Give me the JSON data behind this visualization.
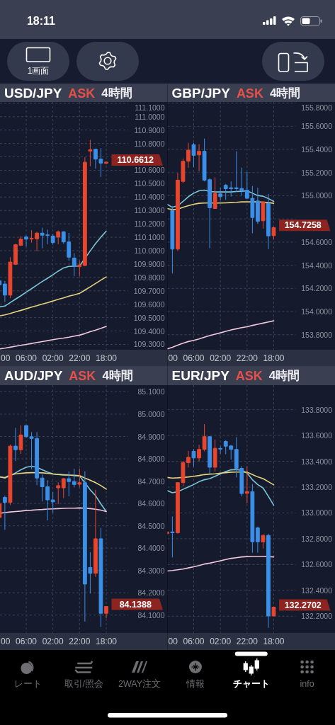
{
  "chart_data": [
    {
      "type": "candlestick",
      "title": "USD/JPY",
      "subtitle": "ASK",
      "annotations": [
        "4時間",
        "00",
        {
          "text": "110.6612",
          "x": "18:00",
          "y": 110.6612
        }
      ],
      "categories": [
        null,
        null,
        null,
        null,
        null,
        "06:00",
        null,
        null,
        null,
        null,
        "02:00",
        null,
        null,
        null,
        null,
        "22:00",
        null,
        null,
        null,
        null,
        "18:00"
      ],
      "ohlc": [
        [
          109.774,
          109.787,
          109.73,
          109.744
        ],
        [
          109.751,
          109.774,
          109.616,
          109.668
        ],
        [
          109.668,
          109.951,
          109.645,
          109.915
        ],
        [
          109.898,
          110.051,
          109.892,
          110.044
        ],
        [
          110.039,
          110.108,
          110.035,
          110.086
        ],
        [
          110.102,
          110.113,
          110.03,
          110.086
        ],
        [
          110.086,
          110.153,
          110.06,
          110.092
        ],
        [
          110.088,
          110.141,
          109.995,
          110.131
        ],
        [
          110.131,
          110.171,
          110.018,
          110.115
        ],
        [
          110.118,
          110.157,
          110.048,
          110.113
        ],
        [
          110.109,
          110.122,
          110.044,
          110.06
        ],
        [
          110.101,
          110.15,
          110.048,
          110.141
        ],
        [
          110.141,
          110.145,
          110.051,
          110.065
        ],
        [
          110.065,
          110.132,
          109.924,
          109.951
        ],
        [
          109.945,
          109.981,
          109.81,
          109.885
        ],
        [
          109.88,
          109.924,
          109.81,
          109.892
        ],
        [
          109.889,
          110.697,
          109.885,
          110.66
        ],
        [
          110.743,
          110.827,
          110.63,
          110.753
        ],
        [
          110.757,
          110.757,
          110.612,
          110.683
        ],
        [
          110.683,
          110.765,
          110.55,
          110.653
        ],
        [
          110.653,
          110.665,
          110.644,
          110.6612
        ]
      ],
      "colors": [
        "#3b8fe8",
        "#3b8fe8",
        "#e8462f",
        "#e8462f",
        "#e8462f",
        "#3b8fe8",
        "#e8462f",
        "#e8462f",
        "#3b8fe8",
        "#3b8fe8",
        "#3b8fe8",
        "#e8462f",
        "#3b8fe8",
        "#3b8fe8",
        "#3b8fe8",
        "#e8462f",
        "#e8462f",
        "#e8462f",
        "#3b8fe8",
        "#3b8fe8",
        "#e8462f"
      ],
      "series": [
        {
          "type": "line",
          "color": "#7cc6d9",
          "values": [
            109.58,
            109.586,
            109.612,
            109.638,
            109.663,
            109.69,
            109.716,
            109.743,
            109.769,
            109.794,
            109.82,
            109.847,
            109.871,
            109.882,
            109.884,
            109.885,
            109.942,
            109.998,
            110.053,
            110.101,
            110.145
          ]
        },
        {
          "type": "line",
          "color": "#e5d47e",
          "values": [
            109.513,
            109.52,
            109.531,
            109.543,
            109.554,
            109.566,
            109.578,
            109.589,
            109.601,
            109.612,
            109.624,
            109.637,
            109.647,
            109.66,
            109.67,
            109.681,
            109.705,
            109.73,
            109.755,
            109.78,
            109.804
          ]
        },
        {
          "type": "line",
          "color": "#f2c6dc",
          "values": [
            109.266,
            109.272,
            109.279,
            109.286,
            109.293,
            109.3,
            109.307,
            109.314,
            109.321,
            109.328,
            109.335,
            109.342,
            109.347,
            109.354,
            109.362,
            109.369,
            109.381,
            109.395,
            109.407,
            109.42,
            109.434
          ]
        }
      ],
      "ylim": [
        109.26,
        111.11
      ],
      "yticks": [
        {
          "value": 109.3,
          "label": "109.3000"
        },
        {
          "value": 109.4,
          "label": "109.4000"
        },
        {
          "value": 109.5,
          "label": "109.5000"
        },
        {
          "value": 109.6,
          "label": "109.6000"
        },
        {
          "value": 109.7,
          "label": "109.7000"
        },
        {
          "value": 109.8,
          "label": "109.8000"
        },
        {
          "value": 109.9,
          "label": "109.9000"
        },
        {
          "value": 110.0,
          "label": "110.0000"
        },
        {
          "value": 110.1,
          "label": "110.1000"
        },
        {
          "value": 110.2,
          "label": "110.2000"
        },
        {
          "value": 110.3,
          "label": "110.3000"
        },
        {
          "value": 110.4,
          "label": "110.4000"
        },
        {
          "value": 110.5,
          "label": "110.5000"
        },
        {
          "value": 110.6,
          "label": "110.6000"
        },
        {
          "value": 110.7,
          "label": null
        },
        {
          "value": 110.8,
          "label": "110.8000"
        },
        {
          "value": 110.9,
          "label": "110.9000"
        },
        {
          "value": 111.0,
          "label": "111.0000"
        },
        {
          "value": 111.1,
          "label": "111.1000"
        }
      ],
      "grid": true
    },
    {
      "type": "candlestick",
      "title": "GBP/JPY",
      "subtitle": "ASK",
      "annotations": [
        "4時間",
        "00",
        {
          "text": "154.7258",
          "x": "18:00",
          "y": 154.7258
        }
      ],
      "categories": [
        null,
        null,
        null,
        null,
        null,
        "06:00",
        null,
        null,
        null,
        null,
        "02:00",
        null,
        null,
        null,
        null,
        "22:00",
        null,
        null,
        null,
        null,
        "18:00"
      ],
      "ohlc": [
        null,
        [
          154.873,
          154.91,
          154.329,
          154.539
        ],
        [
          154.539,
          155.196,
          154.522,
          155.135
        ],
        [
          155.124,
          155.322,
          155.11,
          155.298
        ],
        [
          155.298,
          155.457,
          155.241,
          155.394
        ],
        [
          155.441,
          155.457,
          155.247,
          155.349
        ],
        [
          155.353,
          155.445,
          155.21,
          155.384
        ],
        [
          155.384,
          155.494,
          155.124,
          155.135
        ],
        [
          155.139,
          155.151,
          154.547,
          154.896
        ],
        [
          154.89,
          155.159,
          154.886,
          155.02
        ],
        [
          155.016,
          155.069,
          154.961,
          154.992
        ],
        [
          155.09,
          155.102,
          154.965,
          155.061
        ],
        [
          155.069,
          155.124,
          154.992,
          155.061
        ],
        [
          155.069,
          155.384,
          155.033,
          155.061
        ],
        [
          155.063,
          155.243,
          155.002,
          155.043
        ],
        [
          155.049,
          155.206,
          154.971,
          154.978
        ],
        [
          154.978,
          155.084,
          154.676,
          154.812
        ],
        [
          154.955,
          155.069,
          154.757,
          154.778
        ],
        [
          154.784,
          154.947,
          154.716,
          154.947
        ],
        [
          154.935,
          155.016,
          154.539,
          154.653
        ],
        [
          154.655,
          154.731,
          154.624,
          154.7258
        ]
      ],
      "colors": [
        null,
        "#3b8fe8",
        "#e8462f",
        "#e8462f",
        "#e8462f",
        "#3b8fe8",
        "#e8462f",
        "#3b8fe8",
        "#3b8fe8",
        "#e8462f",
        "#3b8fe8",
        "#3b8fe8",
        "#3b8fe8",
        "#3b8fe8",
        "#3b8fe8",
        "#3b8fe8",
        "#3b8fe8",
        "#3b8fe8",
        "#e8462f",
        "#3b8fe8",
        "#e8462f"
      ],
      "series": [
        {
          "type": "line",
          "color": "#7cc6d9",
          "values": [
            154.927,
            154.9,
            154.914,
            154.951,
            154.992,
            155.022,
            155.043,
            155.049,
            155.037,
            155.033,
            155.033,
            155.033,
            155.033,
            155.037,
            155.039,
            155.043,
            155.022,
            155.002,
            154.996,
            154.976,
            154.951
          ]
        },
        {
          "type": "line",
          "color": "#e5d47e",
          "values": [
            154.89,
            154.88,
            154.884,
            154.9,
            154.914,
            154.927,
            154.935,
            154.937,
            154.937,
            154.937,
            154.937,
            154.939,
            154.941,
            154.943,
            154.947,
            154.947,
            154.947,
            154.947,
            154.945,
            154.941,
            154.935
          ]
        },
        {
          "type": "line",
          "color": "#f2c6dc",
          "values": [
            153.676,
            153.692,
            153.71,
            153.727,
            153.741,
            153.751,
            153.763,
            153.778,
            153.792,
            153.804,
            153.816,
            153.829,
            153.841,
            153.851,
            153.861,
            153.869,
            153.88,
            153.89,
            153.9,
            153.91,
            153.92
          ]
        }
      ],
      "ylim": [
        153.67,
        155.81
      ],
      "yticks": [
        {
          "value": 153.8,
          "label": "153.8000"
        },
        {
          "value": 154.0,
          "label": "154.0000"
        },
        {
          "value": 154.2,
          "label": "154.2000"
        },
        {
          "value": 154.4,
          "label": "154.4000"
        },
        {
          "value": 154.6,
          "label": "154.6000"
        },
        {
          "value": 154.8,
          "label": null
        },
        {
          "value": 155.0,
          "label": "155.0000"
        },
        {
          "value": 155.2,
          "label": "155.2000"
        },
        {
          "value": 155.4,
          "label": "155.4000"
        },
        {
          "value": 155.6,
          "label": "155.6000"
        },
        {
          "value": 155.8,
          "label": "155.8000"
        }
      ],
      "grid": true
    },
    {
      "type": "candlestick",
      "title": "AUD/JPY",
      "subtitle": "ASK",
      "annotations": [
        "4時間",
        "00",
        {
          "text": "84.1388",
          "x": "18:00",
          "y": 84.1388
        }
      ],
      "categories": [
        null,
        null,
        null,
        null,
        null,
        "06:00",
        null,
        null,
        null,
        null,
        "02:00",
        null,
        null,
        null,
        null,
        "22:00",
        null,
        null,
        null,
        null,
        "18:00"
      ],
      "ohlc": [
        [
          84.537,
          84.603,
          84.533,
          84.598
        ],
        [
          84.627,
          84.635,
          84.482,
          84.605
        ],
        [
          84.605,
          84.864,
          84.593,
          84.857
        ],
        [
          84.857,
          84.939,
          84.79,
          84.841
        ],
        [
          84.841,
          84.951,
          84.822,
          84.907
        ],
        [
          84.949,
          84.951,
          84.896,
          84.899
        ],
        [
          84.899,
          84.92,
          84.753,
          84.891
        ],
        [
          84.891,
          84.92,
          84.682,
          84.714
        ],
        [
          84.714,
          84.73,
          84.609,
          84.675
        ],
        [
          84.675,
          84.704,
          84.524,
          84.616
        ],
        [
          84.616,
          84.651,
          84.558,
          84.607
        ],
        [
          84.67,
          84.695,
          84.598,
          84.68
        ],
        [
          84.67,
          84.714,
          84.624,
          84.711
        ],
        [
          84.711,
          84.744,
          84.632,
          84.698
        ],
        [
          84.698,
          84.756,
          84.672,
          84.685
        ],
        [
          84.686,
          84.756,
          84.672,
          84.693
        ],
        [
          84.693,
          84.744,
          84.071,
          84.239
        ],
        [
          84.313,
          84.382,
          84.197,
          84.287
        ],
        [
          84.287,
          84.661,
          84.271,
          84.442
        ],
        [
          84.442,
          84.491,
          84.047,
          84.108
        ],
        [
          84.108,
          84.139,
          84.086,
          84.1388
        ]
      ],
      "colors": [
        "#e8462f",
        "#3b8fe8",
        "#e8462f",
        "#3b8fe8",
        "#e8462f",
        "#3b8fe8",
        "#3b8fe8",
        "#3b8fe8",
        "#3b8fe8",
        "#3b8fe8",
        "#3b8fe8",
        "#e8462f",
        "#e8462f",
        "#3b8fe8",
        "#3b8fe8",
        "#e8462f",
        "#3b8fe8",
        "#3b8fe8",
        "#e8462f",
        "#3b8fe8",
        "#e8462f"
      ],
      "series": [
        {
          "type": "line",
          "color": "#7cc6d9",
          "values": [
            84.719,
            84.714,
            84.725,
            84.737,
            84.751,
            84.762,
            84.767,
            84.762,
            84.751,
            84.741,
            84.733,
            84.73,
            84.727,
            84.727,
            84.725,
            84.723,
            84.693,
            84.661,
            84.635,
            84.598,
            84.564
          ]
        },
        {
          "type": "line",
          "color": "#e5d47e",
          "values": [
            84.719,
            84.716,
            84.727,
            84.733,
            84.735,
            84.737,
            84.738,
            84.738,
            84.737,
            84.735,
            84.732,
            84.73,
            84.729,
            84.727,
            84.726,
            84.725,
            84.714,
            84.704,
            84.693,
            84.68,
            84.664
          ]
        },
        {
          "type": "line",
          "color": "#f2c6dc",
          "values": [
            84.556,
            84.559,
            84.562,
            84.564,
            84.566,
            84.569,
            84.57,
            84.572,
            84.573,
            84.575,
            84.576,
            84.577,
            84.578,
            84.579,
            84.579,
            84.58,
            84.579,
            84.577,
            84.574,
            84.57,
            84.564
          ]
        }
      ],
      "ylim": [
        84.02,
        85.13
      ],
      "yticks": [
        {
          "value": 84.1,
          "label": "84.1000"
        },
        {
          "value": 84.2,
          "label": "84.2000"
        },
        {
          "value": 84.3,
          "label": "84.3000"
        },
        {
          "value": 84.4,
          "label": "84.4000"
        },
        {
          "value": 84.5,
          "label": "84.5000"
        },
        {
          "value": 84.6,
          "label": "84.6000"
        },
        {
          "value": 84.7,
          "label": "84.7000"
        },
        {
          "value": 84.8,
          "label": "84.8000"
        },
        {
          "value": 84.9,
          "label": "84.9000"
        },
        {
          "value": 85.0,
          "label": "85.0000"
        },
        {
          "value": 85.1,
          "label": "85.1000"
        }
      ],
      "grid": true
    },
    {
      "type": "candlestick",
      "title": "EUR/JPY",
      "subtitle": "ASK",
      "annotations": [
        "4時間",
        "00",
        {
          "text": "132.2702",
          "x": "18:00",
          "y": 132.2702
        }
      ],
      "categories": [
        null,
        null,
        null,
        null,
        null,
        "06:00",
        null,
        null,
        null,
        null,
        "02:00",
        null,
        null,
        null,
        null,
        "22:00",
        null,
        null,
        null,
        null,
        "18:00"
      ],
      "ohlc": [
        [
          132.839,
          132.857,
          132.835,
          132.853
        ],
        [
          132.853,
          132.972,
          132.655,
          132.846
        ],
        [
          132.846,
          133.239,
          132.839,
          133.235
        ],
        [
          133.235,
          133.404,
          133.206,
          133.389
        ],
        [
          133.389,
          133.481,
          133.352,
          133.431
        ],
        [
          133.477,
          133.495,
          133.358,
          133.426
        ],
        [
          133.426,
          133.528,
          133.4,
          133.492
        ],
        [
          133.492,
          133.688,
          133.477,
          133.591
        ],
        [
          133.591,
          133.594,
          133.303,
          133.354
        ],
        [
          133.354,
          133.569,
          133.321,
          133.501
        ],
        [
          133.499,
          133.517,
          133.459,
          133.495
        ],
        [
          133.554,
          133.563,
          133.455,
          133.517
        ],
        [
          133.519,
          133.528,
          133.413,
          133.492
        ],
        [
          133.492,
          133.587,
          133.275,
          133.345
        ],
        [
          133.345,
          133.363,
          133.128,
          133.15
        ],
        [
          133.152,
          133.361,
          133.073,
          133.165
        ],
        [
          133.165,
          133.224,
          132.692,
          132.776
        ],
        [
          132.884,
          132.894,
          132.692,
          132.776
        ],
        [
          132.776,
          132.835,
          132.725,
          132.826
        ],
        [
          132.826,
          132.839,
          132.11,
          132.202
        ],
        [
          132.202,
          132.272,
          132.198,
          132.2702
        ]
      ],
      "colors": [
        "#e8462f",
        "#3b8fe8",
        "#e8462f",
        "#e8462f",
        "#e8462f",
        "#3b8fe8",
        "#e8462f",
        "#e8462f",
        "#3b8fe8",
        "#e8462f",
        "#3b8fe8",
        "#3b8fe8",
        "#3b8fe8",
        "#3b8fe8",
        "#3b8fe8",
        "#e8462f",
        "#3b8fe8",
        "#3b8fe8",
        "#e8462f",
        "#3b8fe8",
        "#e8462f"
      ],
      "series": [
        {
          "type": "line",
          "color": "#7cc6d9",
          "values": [
            133.174,
            133.156,
            133.165,
            133.183,
            133.202,
            133.22,
            133.242,
            133.257,
            133.266,
            133.284,
            133.303,
            133.321,
            133.334,
            133.336,
            133.33,
            133.308,
            133.257,
            133.22,
            133.193,
            133.128,
            133.059
          ]
        },
        {
          "type": "line",
          "color": "#e5d47e",
          "values": [
            133.275,
            133.27,
            133.272,
            133.275,
            133.279,
            133.284,
            133.29,
            133.297,
            133.301,
            133.303,
            133.308,
            133.312,
            133.316,
            133.317,
            133.317,
            133.316,
            133.297,
            133.279,
            133.266,
            133.242,
            133.217
          ]
        },
        {
          "type": "line",
          "color": "#f2c6dc",
          "values": [
            132.55,
            132.554,
            132.56,
            132.565,
            132.574,
            132.583,
            132.593,
            132.604,
            132.611,
            132.62,
            132.629,
            132.639,
            132.648,
            132.653,
            132.659,
            132.662,
            132.664,
            132.664,
            132.664,
            132.662,
            132.659
          ]
        }
      ],
      "ylim": [
        132.07,
        133.99
      ],
      "yticks": [
        {
          "value": 132.2,
          "label": "132.2000"
        },
        {
          "value": 132.4,
          "label": "132.4000"
        },
        {
          "value": 132.6,
          "label": "132.6000"
        },
        {
          "value": 132.8,
          "label": "132.8000"
        },
        {
          "value": 133.0,
          "label": "133.0000"
        },
        {
          "value": 133.2,
          "label": "133.2000"
        },
        {
          "value": 133.4,
          "label": "133.4000"
        },
        {
          "value": 133.6,
          "label": "133.6000"
        },
        {
          "value": 133.8,
          "label": "133.8000"
        }
      ],
      "grid": true
    },
    {
      "type": "other",
      "annotations": [
        "18:11",
        "1画面",
        "レート",
        "取引/照会",
        "2WAY注文",
        "情報",
        "チャート",
        "info"
      ]
    }
  ]
}
